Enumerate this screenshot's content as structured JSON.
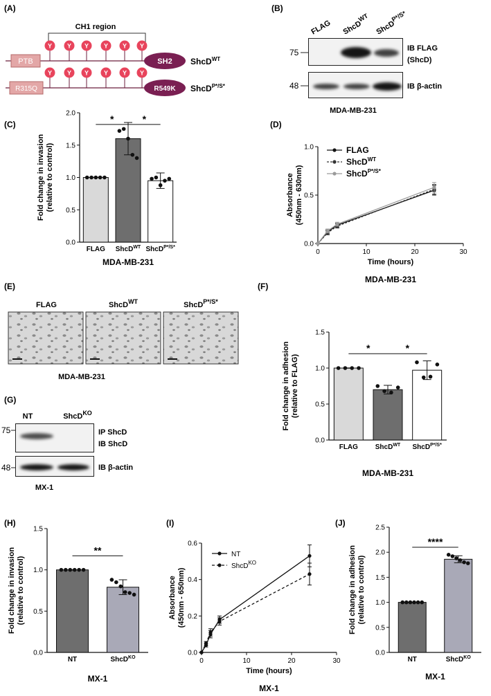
{
  "panel_labels": [
    "(A)",
    "(B)",
    "(C)",
    "(D)",
    "(E)",
    "(F)",
    "(G)",
    "(H)",
    "(I)",
    "(J)"
  ],
  "panelA": {
    "region_label": "CH1 region",
    "row1": {
      "n_domain": "PTB",
      "c_domain": "SH2",
      "name": "ShcD",
      "sup": "WT"
    },
    "row2": {
      "n_domain": "R315Q",
      "c_domain": "R549K",
      "name": "ShcD",
      "sup": "P*/S*"
    },
    "tyrosine_label": "Y",
    "colors": {
      "n_domain": "#e3a7a7",
      "c_domain": "#7a1f52",
      "tyrosine": "#e8445c",
      "line": "#6b1d3c"
    }
  },
  "panelB": {
    "lanes": [
      {
        "base": "FLAG",
        "sup": ""
      },
      {
        "base": "ShcD",
        "sup": "WT"
      },
      {
        "base": "ShcD",
        "sup": "P*/S*"
      }
    ],
    "mw_top": "75",
    "mw_bottom": "48",
    "ib_top_line1": "IB FLAG",
    "ib_top_line2": "(ShcD)",
    "ib_bottom": "IB β-actin",
    "cell_line": "MDA-MB-231"
  },
  "panelE": {
    "labels": [
      {
        "base": "FLAG",
        "sup": ""
      },
      {
        "base": "ShcD",
        "sup": "WT"
      },
      {
        "base": "ShcD",
        "sup": "P*/S*"
      }
    ],
    "cell_line": "MDA-MB-231"
  },
  "panelG": {
    "lanes": [
      {
        "base": "NT",
        "sup": ""
      },
      {
        "base": "ShcD",
        "sup": "KO"
      }
    ],
    "mw_top": "75",
    "mw_bottom": "48",
    "ip_label": "IP ShcD",
    "ib_label": "IB ShcD",
    "ib_bottom": "IB β-actin",
    "cell_line": "MX-1"
  },
  "chart_data": [
    {
      "id": "C",
      "type": "bar",
      "categories": [
        {
          "base": "FLAG",
          "sup": ""
        },
        {
          "base": "ShcD",
          "sup": "WT"
        },
        {
          "base": "ShcD",
          "sup": "P*/S*"
        }
      ],
      "values": [
        1.0,
        1.6,
        0.95
      ],
      "errors": [
        0.0,
        0.25,
        0.12
      ],
      "points": [
        [
          1.0,
          1.0,
          1.0,
          1.0,
          1.0
        ],
        [
          1.72,
          1.75,
          1.6,
          1.35,
          1.3
        ],
        [
          0.98,
          1.0,
          0.88,
          0.95,
          0.98
        ]
      ],
      "bar_colors": [
        "#d9d9d9",
        "#6e6e6e",
        "#ffffff"
      ],
      "ylabel_lines": [
        "Fold change in invasion",
        "(relative to control)"
      ],
      "xlabel": "MDA-MB-231",
      "ylim": [
        0,
        2.0
      ],
      "yticks": [
        "0.0",
        "0.5",
        "1.0",
        "1.5",
        "2.0"
      ],
      "significance": [
        {
          "from": 0,
          "to": 1,
          "label": "*"
        },
        {
          "from": 1,
          "to": 2,
          "label": "*"
        }
      ]
    },
    {
      "id": "D",
      "type": "line",
      "x": [
        0,
        2,
        4,
        24
      ],
      "series": [
        {
          "name": "FLAG",
          "sup": "",
          "values": [
            0,
            0.12,
            0.19,
            0.55
          ],
          "color": "#111111",
          "dash": ""
        },
        {
          "name": "ShcD",
          "sup": "WT",
          "values": [
            0,
            0.11,
            0.18,
            0.56
          ],
          "color": "#333333",
          "dash": "3,2"
        },
        {
          "name": "ShcD",
          "sup": "P*/S*",
          "values": [
            0,
            0.13,
            0.2,
            0.58
          ],
          "color": "#9a9a9a",
          "dash": ""
        }
      ],
      "errors": [
        0,
        0.02,
        0.02,
        0.05
      ],
      "xlabel": "Time (hours)",
      "ylabel_lines": [
        "Absorbance",
        "(450nm - 630nm)"
      ],
      "xlim": [
        0,
        30
      ],
      "ylim": [
        0,
        1.0
      ],
      "xticks": [
        "0",
        "10",
        "20",
        "30"
      ],
      "yticks": [
        "0.0",
        "0.5",
        "1.0"
      ],
      "caption": "MDA-MB-231"
    },
    {
      "id": "F",
      "type": "bar",
      "categories": [
        {
          "base": "FLAG",
          "sup": ""
        },
        {
          "base": "ShcD",
          "sup": "WT"
        },
        {
          "base": "ShcD",
          "sup": "P*/S*"
        }
      ],
      "values": [
        1.0,
        0.7,
        0.97
      ],
      "errors": [
        0.0,
        0.06,
        0.13
      ],
      "points": [
        [
          1.0,
          1.0,
          1.0,
          1.0
        ],
        [
          0.75,
          0.68,
          0.66,
          0.73
        ],
        [
          1.08,
          0.87,
          0.88,
          1.05
        ]
      ],
      "bar_colors": [
        "#d9d9d9",
        "#6e6e6e",
        "#ffffff"
      ],
      "ylabel_lines": [
        "Fold change in adhesion",
        "(relative to FLAG)"
      ],
      "xlabel": "MDA-MB-231",
      "ylim": [
        0,
        1.5
      ],
      "yticks": [
        "0.0",
        "0.5",
        "1.0",
        "1.5"
      ],
      "significance": [
        {
          "from": 0,
          "to": 1,
          "label": "*"
        },
        {
          "from": 1,
          "to": 2,
          "label": "*"
        }
      ]
    },
    {
      "id": "H",
      "type": "bar",
      "categories": [
        {
          "base": "NT",
          "sup": ""
        },
        {
          "base": "ShcD",
          "sup": "KO"
        }
      ],
      "values": [
        1.0,
        0.79
      ],
      "errors": [
        0.0,
        0.09
      ],
      "points": [
        [
          1.0,
          1.0,
          1.0,
          1.0,
          1.0,
          1.0
        ],
        [
          0.88,
          0.85,
          0.8,
          0.73,
          0.72,
          0.7
        ]
      ],
      "bar_colors": [
        "#6e6e6e",
        "#a9a9b7"
      ],
      "ylabel_lines": [
        "Fold change in invasion",
        "(relative to control)"
      ],
      "xlabel": "MX-1",
      "ylim": [
        0,
        1.5
      ],
      "yticks": [
        "0.0",
        "0.5",
        "1.0",
        "1.5"
      ],
      "significance": [
        {
          "from": 0,
          "to": 1,
          "label": "**"
        }
      ]
    },
    {
      "id": "I",
      "type": "line",
      "x": [
        0,
        1,
        2,
        4,
        24
      ],
      "series": [
        {
          "name": "NT",
          "sup": "",
          "values": [
            0,
            0.04,
            0.1,
            0.18,
            0.53
          ],
          "color": "#111111",
          "dash": ""
        },
        {
          "name": "ShcD",
          "sup": "KO",
          "values": [
            0,
            0.05,
            0.11,
            0.17,
            0.43
          ],
          "color": "#111111",
          "dash": "4,3"
        }
      ],
      "errors": [
        0,
        0.01,
        0.02,
        0.02,
        0.06
      ],
      "xlabel": "Time (hours)",
      "ylabel_lines": [
        "Absorbance",
        "(450nm - 650nm)"
      ],
      "xlim": [
        0,
        30
      ],
      "ylim": [
        0,
        0.6
      ],
      "xticks": [
        "0",
        "10",
        "20",
        "30"
      ],
      "yticks": [
        "0.0",
        "0.2",
        "0.4",
        "0.6"
      ],
      "caption": "MX-1"
    },
    {
      "id": "J",
      "type": "bar",
      "categories": [
        {
          "base": "NT",
          "sup": ""
        },
        {
          "base": "ShcD",
          "sup": "KO"
        }
      ],
      "values": [
        1.0,
        1.86
      ],
      "errors": [
        0.0,
        0.07
      ],
      "points": [
        [
          1.0,
          1.0,
          1.0,
          1.0,
          1.0,
          1.0
        ],
        [
          1.95,
          1.92,
          1.88,
          1.84,
          1.8,
          1.78
        ]
      ],
      "bar_colors": [
        "#6e6e6e",
        "#a9a9b7"
      ],
      "ylabel_lines": [
        "Fold change in adhesion",
        "(relative to control)"
      ],
      "xlabel": "MX-1",
      "ylim": [
        0,
        2.5
      ],
      "yticks": [
        "0.0",
        "0.5",
        "1.0",
        "1.5",
        "2.0",
        "2.5"
      ],
      "significance": [
        {
          "from": 0,
          "to": 1,
          "label": "****"
        }
      ]
    }
  ]
}
